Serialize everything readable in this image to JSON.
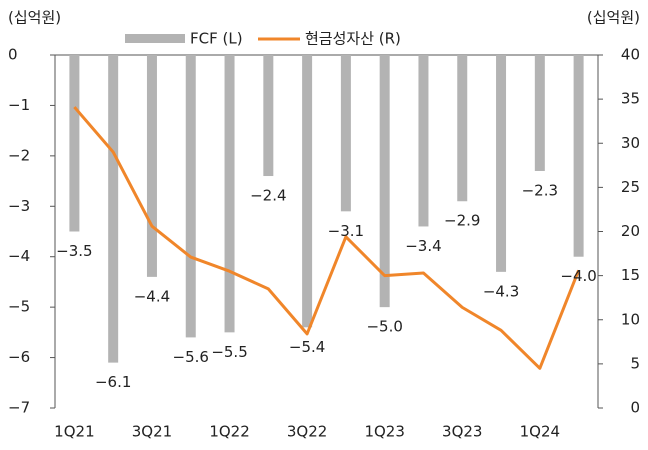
{
  "chart_data": {
    "type": "bar_line",
    "left_unit": "(십억원)",
    "right_unit": "(십억원)",
    "categories": [
      "1Q21",
      null,
      "3Q21",
      null,
      "1Q22",
      null,
      "3Q22",
      null,
      "1Q23",
      null,
      "3Q23",
      null,
      "1Q24",
      null
    ],
    "series": [
      {
        "name": "FCF (L)",
        "color": "#b3b3b3",
        "type": "bar",
        "axis": "y",
        "values": [
          -3.5,
          -6.1,
          -4.4,
          -5.6,
          -5.5,
          -2.4,
          -5.4,
          -3.1,
          -5.0,
          -3.4,
          -2.9,
          -4.3,
          -2.3,
          -4.0
        ],
        "value_labels": [
          "−3.5",
          "−6.1",
          "−4.4",
          "−5.6",
          "−5.5",
          "−2.4",
          "−5.4",
          "−3.1",
          "−5.0",
          "−3.4",
          "−2.9",
          "−4.3",
          "−2.3",
          "−4.0"
        ]
      },
      {
        "name": "현금성자산 (R)",
        "color": "#f0862a",
        "type": "line",
        "axis": "y2",
        "values": [
          34.1,
          29.0,
          20.6,
          17.1,
          15.5,
          13.5,
          8.4,
          19.4,
          15.0,
          15.3,
          11.4,
          8.8,
          4.5,
          15.6
        ]
      }
    ],
    "ylim": [
      -7,
      0
    ],
    "yticks": [
      0,
      {
        "value": -1,
        "label": "−1"
      },
      {
        "value": -2,
        "label": "−2"
      },
      {
        "value": -3,
        "label": "−3"
      },
      {
        "value": -4,
        "label": "−4"
      },
      {
        "value": -5,
        "label": "−5"
      },
      {
        "value": -6,
        "label": "−6"
      },
      {
        "value": -7,
        "label": "−7"
      }
    ],
    "y2lim": [
      0,
      40
    ],
    "y2ticks": [
      0,
      5,
      10,
      15,
      20,
      25,
      30,
      35,
      40
    ]
  }
}
